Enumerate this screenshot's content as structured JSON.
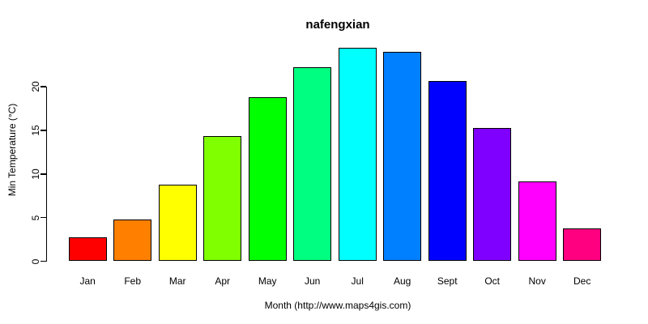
{
  "chart_data": {
    "type": "bar",
    "title": "nafengxian",
    "xlabel": "Month (http://www.maps4gis.com)",
    "ylabel": "Min Temperature (°C)",
    "categories": [
      "Jan",
      "Feb",
      "Mar",
      "Apr",
      "May",
      "Jun",
      "Jul",
      "Aug",
      "Sept",
      "Oct",
      "Nov",
      "Dec"
    ],
    "values": [
      2.7,
      4.8,
      8.8,
      14.3,
      18.8,
      22.2,
      24.5,
      24.0,
      20.7,
      15.3,
      9.1,
      3.8
    ],
    "bar_colors": [
      "#FF0000",
      "#FF8000",
      "#FFFF00",
      "#80FF00",
      "#00FF00",
      "#00FF80",
      "#00FFFF",
      "#0080FF",
      "#0000FF",
      "#8000FF",
      "#FF00FF",
      "#FF0080"
    ],
    "yticks": [
      0,
      5,
      10,
      15,
      20
    ],
    "ylim": [
      0,
      25
    ],
    "grid": false,
    "legend": false,
    "axis_color": "#000000",
    "bar_border_color": "#000000",
    "background": "#FFFFFF"
  }
}
